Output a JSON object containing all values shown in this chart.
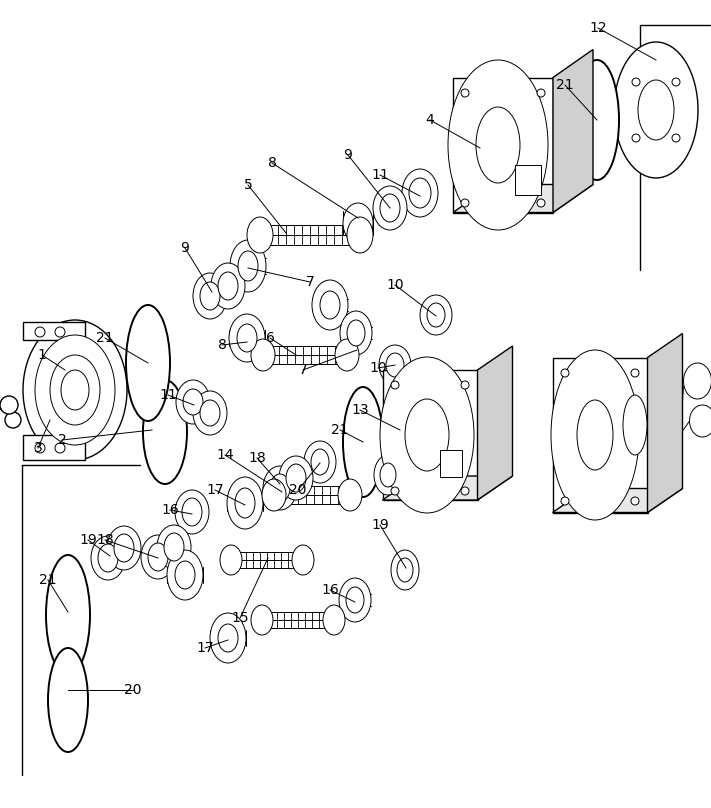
{
  "background_color": "#ffffff",
  "line_color": "#000000",
  "label_fontsize": 10,
  "fig_width": 7.11,
  "fig_height": 8.08,
  "dpi": 100
}
